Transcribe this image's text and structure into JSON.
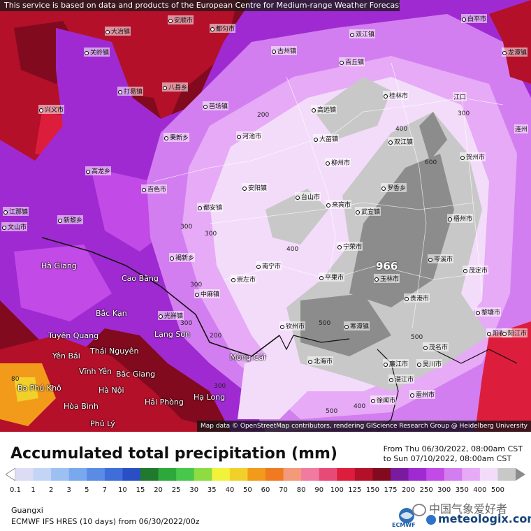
{
  "header": {
    "notice": "This service is based on data and products of the European Centre for Medium-range Weather Forecasts (ECMWF)",
    "attribution": "Map data © OpenStreetMap contributors, rendering GIScience Research Group @ Heidelberg University"
  },
  "legend": {
    "title": "Accumulated total precipitation (mm)",
    "period_from": "From Thu 06/30/2022, 08:00am CST",
    "period_to": "to Sun 07/10/2022, 08:00am CST",
    "bins": [
      {
        "label": "0.1",
        "color": "#dcdcf5"
      },
      {
        "label": "1",
        "color": "#c2d5f7"
      },
      {
        "label": "2",
        "color": "#9cc0f2"
      },
      {
        "label": "3",
        "color": "#7aa8ee"
      },
      {
        "label": "5",
        "color": "#5a8ce6"
      },
      {
        "label": "7",
        "color": "#3f6ed9"
      },
      {
        "label": "10",
        "color": "#2a4fc4"
      },
      {
        "label": "15",
        "color": "#1f7a2e"
      },
      {
        "label": "20",
        "color": "#2da83a"
      },
      {
        "label": "25",
        "color": "#47c84a"
      },
      {
        "label": "30",
        "color": "#8cdc42"
      },
      {
        "label": "35",
        "color": "#f2f23a"
      },
      {
        "label": "40",
        "color": "#f2d02a"
      },
      {
        "label": "50",
        "color": "#f29a1a"
      },
      {
        "label": "60",
        "color": "#f07a22"
      },
      {
        "label": "70",
        "color": "#f29a7a"
      },
      {
        "label": "80",
        "color": "#f07aa0"
      },
      {
        "label": "90",
        "color": "#e84a78"
      },
      {
        "label": "100",
        "color": "#dc1e3c"
      },
      {
        "label": "125",
        "color": "#b4102a"
      },
      {
        "label": "150",
        "color": "#820a1e"
      },
      {
        "label": "175",
        "color": "#7a1a9e"
      },
      {
        "label": "200",
        "color": "#a02ad2"
      },
      {
        "label": "250",
        "color": "#c24ae6"
      },
      {
        "label": "300",
        "color": "#d27ef0"
      },
      {
        "label": "350",
        "color": "#e6aaf6"
      },
      {
        "label": "400",
        "color": "#f3dcfa"
      },
      {
        "label": "500",
        "color": "#c8c8c8"
      }
    ],
    "overflow_color": "#8c8c8c"
  },
  "footer": {
    "region": "Guangxi",
    "model_line": "ECMWF IFS HRES (10 days) from 06/30/2022/00z",
    "ecmwf_logo_text": "ECMWF",
    "wechat_label": "中国气象爱好者",
    "brand": "meteologix.com"
  },
  "map": {
    "max_value": "966",
    "places": [
      {
        "name": "安顺市",
        "big": false
      },
      {
        "name": "都匀市",
        "big": false
      },
      {
        "name": "双江镇",
        "big": false
      },
      {
        "name": "白平市",
        "big": false
      },
      {
        "name": "大冶镇",
        "big": false
      },
      {
        "name": "关岭镇",
        "big": false
      },
      {
        "name": "古州镇",
        "big": false
      },
      {
        "name": "百丘镇",
        "big": false
      },
      {
        "name": "龙潭镇",
        "big": false
      },
      {
        "name": "打易镇",
        "big": false
      },
      {
        "name": "八县乡",
        "big": false
      },
      {
        "name": "兴义市",
        "big": false
      },
      {
        "name": "芭场镇",
        "big": false
      },
      {
        "name": "桂林市",
        "big": false
      },
      {
        "name": "江口",
        "big": false
      },
      {
        "name": "连州",
        "big": false
      },
      {
        "name": "河池市",
        "big": false
      },
      {
        "name": "高远镇",
        "big": false
      },
      {
        "name": "大苗镇",
        "big": false
      },
      {
        "name": "秉新乡",
        "big": false
      },
      {
        "name": "双江镇",
        "big": false
      },
      {
        "name": "贺州市",
        "big": false
      },
      {
        "name": "柳州市",
        "big": false
      },
      {
        "name": "高龙乡",
        "big": false
      },
      {
        "name": "安阳镇",
        "big": false
      },
      {
        "name": "罗香乡",
        "big": false
      },
      {
        "name": "百色市",
        "big": false
      },
      {
        "name": "台山市",
        "big": false
      },
      {
        "name": "来宾市",
        "big": false
      },
      {
        "name": "江那镇",
        "big": false
      },
      {
        "name": "都安镇",
        "big": false
      },
      {
        "name": "梧州市",
        "big": false
      },
      {
        "name": "新黎乡",
        "big": false
      },
      {
        "name": "武宣镇",
        "big": false
      },
      {
        "name": "文山市",
        "big": false
      },
      {
        "name": "宁荣市",
        "big": false
      },
      {
        "name": "褐新乡",
        "big": false
      },
      {
        "name": "南宁市",
        "big": false
      },
      {
        "name": "岑溪市",
        "big": false
      },
      {
        "name": "崇左市",
        "big": false
      },
      {
        "name": "玉林市",
        "big": false
      },
      {
        "name": "茂定市",
        "big": false
      },
      {
        "name": "中麻镇",
        "big": false
      },
      {
        "name": "贵港市",
        "big": false
      },
      {
        "name": "平果市",
        "big": false
      },
      {
        "name": "黎塘市",
        "big": false
      },
      {
        "name": "阳春市",
        "big": false
      },
      {
        "name": "光祥镇",
        "big": false
      },
      {
        "name": "钦州市",
        "big": false
      },
      {
        "name": "寒潭镇",
        "big": false
      },
      {
        "name": "阳江市",
        "big": false
      },
      {
        "name": "北海市",
        "big": false
      },
      {
        "name": "廉江市",
        "big": false
      },
      {
        "name": "茂名市",
        "big": false
      },
      {
        "name": "湛江市",
        "big": false
      },
      {
        "name": "吴川市",
        "big": false
      },
      {
        "name": "徐闻市",
        "big": false
      },
      {
        "name": "雷州市",
        "big": false
      },
      {
        "name": "Hà Giang",
        "big": true
      },
      {
        "name": "Cao Bằng",
        "big": true
      },
      {
        "name": "Bắc Kạn",
        "big": true
      },
      {
        "name": "Tuyên Quang",
        "big": true
      },
      {
        "name": "Thái Nguyên",
        "big": true
      },
      {
        "name": "Lạng Sơn",
        "big": true
      },
      {
        "name": "Yên Bái",
        "big": true
      },
      {
        "name": "Vĩnh Yên",
        "big": true
      },
      {
        "name": "Bắc Giang",
        "big": true
      },
      {
        "name": "Móng Cái",
        "big": true
      },
      {
        "name": "Ba Phú Khô",
        "big": true
      },
      {
        "name": "Hà Nội",
        "big": true
      },
      {
        "name": "Hải Phòng",
        "big": true
      },
      {
        "name": "Hạ Long",
        "big": true
      },
      {
        "name": "Hòa Bình",
        "big": true
      },
      {
        "name": "Phủ Lý",
        "big": true
      }
    ],
    "contours": [
      "200",
      "300",
      "400",
      "300",
      "300",
      "300",
      "400",
      "500",
      "600",
      "500",
      "300",
      "200",
      "80",
      "500",
      "400",
      "300"
    ]
  }
}
